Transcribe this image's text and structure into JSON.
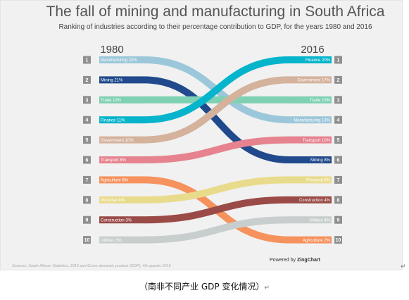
{
  "chart_data": {
    "type": "bump",
    "title": "The fall of mining and manufacturing in South Africa",
    "subtitle": "Ranking of industries according to their percentage contribution to GDP, for the years 1980 and 2016",
    "x_labels": [
      "1980",
      "2016"
    ],
    "ranks": [
      "1",
      "2",
      "3",
      "4",
      "5",
      "6",
      "7",
      "8",
      "9",
      "10"
    ],
    "series": [
      {
        "name": "Manufacturing",
        "label_1980": "Manufacturing 22%",
        "label_2016": "Manufacturing 13%",
        "rank_1980": 1,
        "rank_2016": 4,
        "value_1980": 22,
        "value_2016": 13,
        "color": "#9cc7da"
      },
      {
        "name": "Mining",
        "label_1980": "Mining 21%",
        "label_2016": "Mining 8%",
        "rank_1980": 2,
        "rank_2016": 6,
        "value_1980": 21,
        "value_2016": 8,
        "color": "#204a8c"
      },
      {
        "name": "Trade",
        "label_1980": "Trade 12%",
        "label_2016": "Trade 15%",
        "rank_1980": 3,
        "rank_2016": 3,
        "value_1980": 12,
        "value_2016": 15,
        "color": "#7fd1b4"
      },
      {
        "name": "Finance",
        "label_1980": "Finance 11%",
        "label_2016": "Finance 20%",
        "rank_1980": 4,
        "rank_2016": 1,
        "value_1980": 11,
        "value_2016": 20,
        "color": "#06b4cb"
      },
      {
        "name": "Government",
        "label_1980": "Government 10%",
        "label_2016": "Government 17%",
        "rank_1980": 5,
        "rank_2016": 2,
        "value_1980": 10,
        "value_2016": 17,
        "color": "#d4b29c"
      },
      {
        "name": "Transport",
        "label_1980": "Transport 8%",
        "label_2016": "Transport 10%",
        "rank_1980": 6,
        "rank_2016": 5,
        "value_1980": 8,
        "value_2016": 10,
        "color": "#e6838f"
      },
      {
        "name": "Agriculture",
        "label_1980": "Agriculture 6%",
        "label_2016": "Agriculture 2%",
        "rank_1980": 7,
        "rank_2016": 10,
        "value_1980": 6,
        "value_2016": 2,
        "color": "#f6925e"
      },
      {
        "name": "Personal",
        "label_1980": "Personal 4%",
        "label_2016": "Personal 6%",
        "rank_1980": 8,
        "rank_2016": 7,
        "value_1980": 4,
        "value_2016": 6,
        "color": "#e9db8c"
      },
      {
        "name": "Construction",
        "label_1980": "Construction 3%",
        "label_2016": "Construction 4%",
        "rank_1980": 9,
        "rank_2016": 8,
        "value_1980": 3,
        "value_2016": 4,
        "color": "#9a4b48"
      },
      {
        "name": "Utilities",
        "label_1980": "Utilities 3%",
        "label_2016": "Utilities 4%",
        "rank_1980": 10,
        "rank_2016": 9,
        "value_1980": 3,
        "value_2016": 4,
        "color": "#c8cecd"
      }
    ],
    "source": "Sources: South African Statistics, 2015 and Gross domestic product (GDP), 4th quarter 2016",
    "powered_prefix": "Powered by",
    "powered_brand": "ZingChart"
  },
  "caption": "（南非不同产业 GDP 变化情况）",
  "edit_mark": "↵"
}
